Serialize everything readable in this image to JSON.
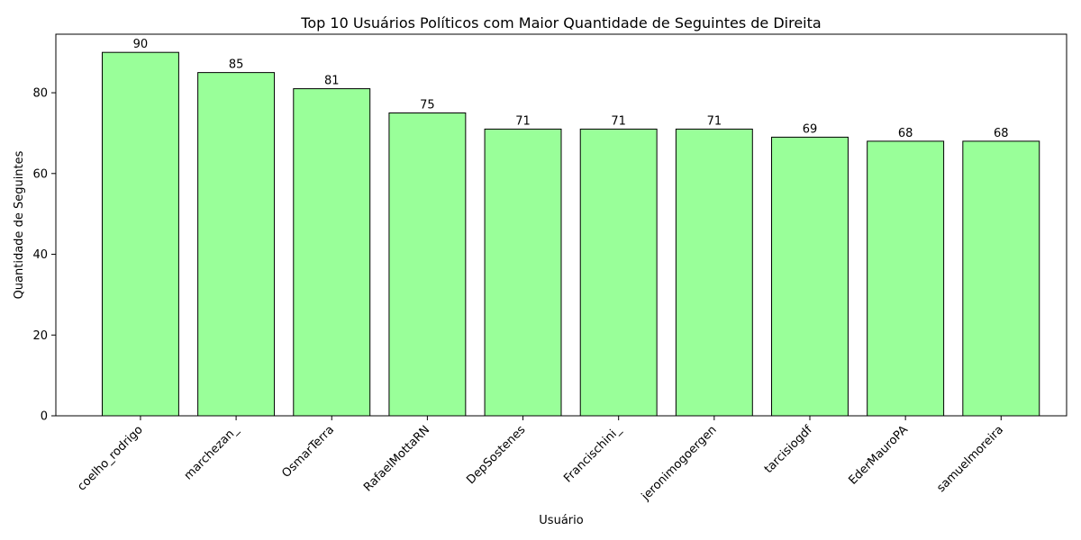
{
  "chart_data": {
    "type": "bar",
    "title": "Top 10 Usuários Políticos com Maior Quantidade de Seguintes de Direita",
    "xlabel": "Usuário",
    "ylabel": "Quantidade de Seguintes",
    "categories": [
      "coelho_rodrigo",
      "marchezan_",
      "OsmarTerra",
      "RafaelMottaRN",
      "DepSostenes",
      "Francischini_",
      "jeronimogoergen",
      "tarcisiogdf",
      "EderMauroPA",
      "samuelmoreira"
    ],
    "values": [
      90,
      85,
      81,
      75,
      71,
      71,
      71,
      69,
      68,
      68
    ],
    "ylim": [
      0,
      94.5
    ],
    "yticks": [
      0,
      20,
      40,
      60,
      80
    ],
    "grid": false,
    "bar_color": "#99ff99",
    "bar_edge_color": "#000000"
  }
}
